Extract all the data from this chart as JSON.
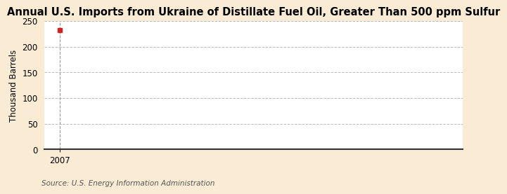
{
  "title": "Annual U.S. Imports from Ukraine of Distillate Fuel Oil, Greater Than 500 ppm Sulfur",
  "ylabel": "Thousand Barrels",
  "source": "Source: U.S. Energy Information Administration",
  "x_data": [
    2007
  ],
  "y_data": [
    233
  ],
  "marker_color": "#cc2222",
  "marker_size": 4,
  "xlim": [
    2006.4,
    2023
  ],
  "ylim": [
    0,
    250
  ],
  "yticks": [
    0,
    50,
    100,
    150,
    200,
    250
  ],
  "xticks": [
    2007
  ],
  "figure_bg": "#faecd4",
  "plot_bg": "#ffffff",
  "grid_color": "#bbbbbb",
  "vline_color": "#999999",
  "bottom_spine_color": "#333333",
  "title_fontsize": 10.5,
  "label_fontsize": 8.5,
  "tick_fontsize": 8.5,
  "source_fontsize": 7.5
}
